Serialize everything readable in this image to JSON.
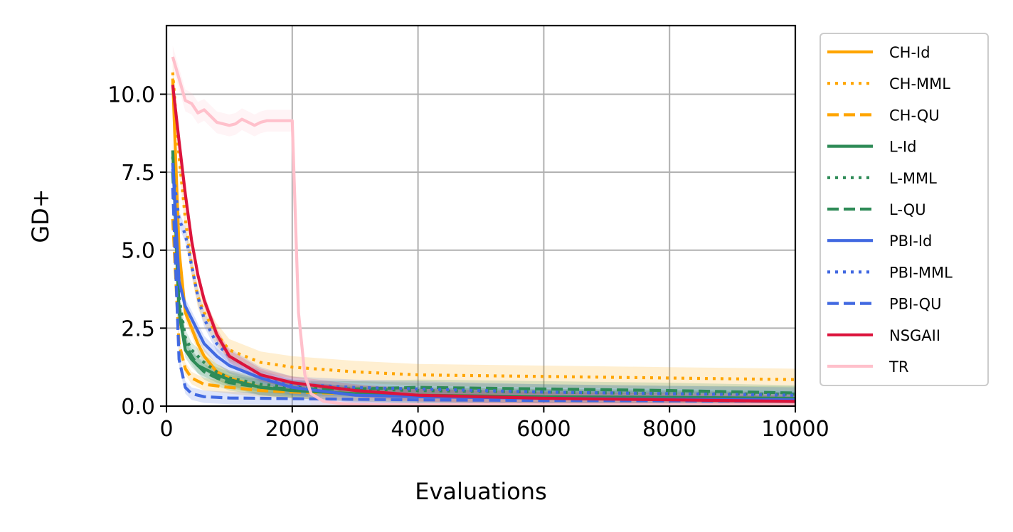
{
  "chart_data": {
    "type": "line",
    "title": "",
    "xlabel": "Evaluations",
    "ylabel": "GD+",
    "xlim": [
      0,
      10000
    ],
    "ylim": [
      0,
      12.2
    ],
    "xticks": [
      0,
      2000,
      4000,
      6000,
      8000,
      10000
    ],
    "xtick_labels": [
      "0",
      "2000",
      "4000",
      "6000",
      "8000",
      "10000"
    ],
    "yticks": [
      0,
      2.5,
      5,
      7.5,
      10
    ],
    "ytick_labels": [
      "0.0",
      "2.5",
      "5.0",
      "7.5",
      "10.0"
    ],
    "grid": true,
    "legend_position": "outside-right",
    "series": [
      {
        "name": "CH-Id",
        "color": "#FFA500",
        "style": "solid",
        "x": [
          100,
          200,
          300,
          400,
          500,
          600,
          800,
          1000,
          1500,
          2000,
          3000,
          4000,
          6000,
          8000,
          10000
        ],
        "y": [
          10.5,
          5.0,
          3.0,
          2.5,
          2.0,
          1.6,
          1.1,
          0.9,
          0.6,
          0.5,
          0.4,
          0.35,
          0.3,
          0.25,
          0.2
        ],
        "band": 0.25
      },
      {
        "name": "CH-MML",
        "color": "#FFA500",
        "style": "dotted",
        "x": [
          100,
          200,
          300,
          400,
          500,
          600,
          800,
          1000,
          1500,
          2000,
          3000,
          4000,
          6000,
          8000,
          10000
        ],
        "y": [
          10.7,
          8.0,
          6.0,
          4.5,
          3.5,
          3.0,
          2.3,
          1.8,
          1.4,
          1.25,
          1.1,
          1.0,
          0.95,
          0.9,
          0.85
        ],
        "band": 0.35
      },
      {
        "name": "CH-QU",
        "color": "#FFA500",
        "style": "dashed",
        "x": [
          100,
          200,
          300,
          400,
          500,
          600,
          800,
          1000,
          1500,
          2000,
          3000,
          4000,
          6000,
          8000,
          10000
        ],
        "y": [
          6.0,
          2.0,
          1.2,
          0.9,
          0.8,
          0.7,
          0.65,
          0.6,
          0.5,
          0.45,
          0.4,
          0.35,
          0.3,
          0.25,
          0.22
        ],
        "band": 0.2
      },
      {
        "name": "L-Id",
        "color": "#2E8B57",
        "style": "solid",
        "x": [
          100,
          200,
          300,
          400,
          500,
          600,
          800,
          1000,
          1500,
          2000,
          3000,
          4000,
          6000,
          8000,
          10000
        ],
        "y": [
          8.2,
          3.0,
          1.8,
          1.5,
          1.3,
          1.2,
          1.0,
          0.85,
          0.6,
          0.5,
          0.4,
          0.35,
          0.3,
          0.28,
          0.25
        ],
        "band": 0.25
      },
      {
        "name": "L-MML",
        "color": "#2E8B57",
        "style": "dotted",
        "x": [
          100,
          200,
          300,
          400,
          500,
          600,
          800,
          1000,
          1500,
          2000,
          3000,
          4000,
          6000,
          8000,
          10000
        ],
        "y": [
          8.0,
          3.5,
          2.2,
          1.8,
          1.6,
          1.4,
          1.1,
          0.9,
          0.7,
          0.6,
          0.55,
          0.5,
          0.45,
          0.4,
          0.38
        ],
        "band": 0.25
      },
      {
        "name": "L-QU",
        "color": "#2E8B57",
        "style": "dashed",
        "x": [
          100,
          200,
          300,
          400,
          500,
          600,
          800,
          1000,
          1500,
          2000,
          3000,
          4000,
          6000,
          8000,
          10000
        ],
        "y": [
          7.5,
          3.2,
          2.0,
          1.6,
          1.3,
          1.1,
          0.9,
          0.75,
          0.6,
          0.55,
          0.55,
          0.6,
          0.55,
          0.5,
          0.42
        ],
        "band": 0.25
      },
      {
        "name": "PBI-Id",
        "color": "#4169E1",
        "style": "solid",
        "x": [
          100,
          200,
          300,
          400,
          500,
          600,
          800,
          1000,
          1500,
          2000,
          3000,
          4000,
          6000,
          8000,
          10000
        ],
        "y": [
          7.8,
          4.0,
          3.2,
          2.8,
          2.4,
          2.0,
          1.6,
          1.3,
          0.9,
          0.6,
          0.35,
          0.3,
          0.25,
          0.22,
          0.2
        ],
        "band": 0.25
      },
      {
        "name": "PBI-MML",
        "color": "#4169E1",
        "style": "dotted",
        "x": [
          100,
          200,
          300,
          400,
          500,
          600,
          800,
          1000,
          1500,
          2000,
          3000,
          4000,
          6000,
          8000,
          10000
        ],
        "y": [
          7.6,
          6.0,
          5.5,
          4.5,
          3.5,
          2.8,
          2.0,
          1.6,
          1.0,
          0.7,
          0.6,
          0.55,
          0.45,
          0.4,
          0.35
        ],
        "band": 0.25
      },
      {
        "name": "PBI-QU",
        "color": "#4169E1",
        "style": "dashed",
        "x": [
          100,
          200,
          300,
          400,
          500,
          600,
          800,
          1000,
          1500,
          2000,
          3000,
          4000,
          6000,
          8000,
          10000
        ],
        "y": [
          7.0,
          1.5,
          0.6,
          0.4,
          0.35,
          0.3,
          0.28,
          0.26,
          0.25,
          0.24,
          0.22,
          0.2,
          0.18,
          0.17,
          0.16
        ],
        "band": 0.2
      },
      {
        "name": "NSGAII",
        "color": "#DC143C",
        "style": "solid",
        "x": [
          100,
          200,
          300,
          400,
          500,
          600,
          800,
          1000,
          1500,
          2000,
          3000,
          4000,
          6000,
          8000,
          10000
        ],
        "y": [
          10.3,
          8.5,
          6.8,
          5.3,
          4.2,
          3.4,
          2.3,
          1.6,
          1.0,
          0.75,
          0.5,
          0.35,
          0.25,
          0.2,
          0.15
        ],
        "band": 0.2
      },
      {
        "name": "TR",
        "color": "#FFC0CB",
        "style": "solid",
        "x": [
          100,
          200,
          300,
          400,
          500,
          600,
          800,
          1000,
          1100,
          1200,
          1300,
          1400,
          1500,
          1600,
          1800,
          2000,
          2100,
          2200,
          2300,
          2500,
          2800,
          3000,
          4000,
          6000,
          8000,
          10000
        ],
        "y": [
          11.2,
          10.5,
          9.8,
          9.7,
          9.4,
          9.5,
          9.1,
          9.0,
          9.05,
          9.2,
          9.1,
          9.0,
          9.1,
          9.15,
          9.15,
          9.15,
          3.0,
          1.0,
          0.4,
          0.15,
          0.08,
          0.06,
          0.05,
          0.04,
          0.04,
          0.04
        ],
        "band": 0.35
      }
    ]
  }
}
